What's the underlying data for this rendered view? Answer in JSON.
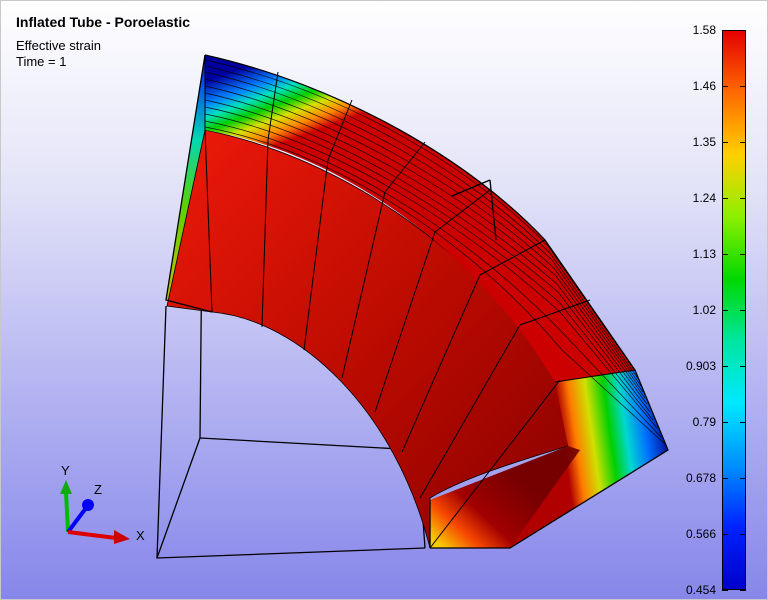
{
  "title": "Inflated Tube - Poroelastic",
  "subtitle": "Effective strain",
  "time": "Time = 1",
  "axes": {
    "x": "X",
    "y": "Y",
    "z": "Z"
  },
  "colorbar": {
    "ticks": [
      "1.58",
      "1.46",
      "1.35",
      "1.24",
      "1.13",
      "1.02",
      "0.903",
      "0.79",
      "0.678",
      "0.566",
      "0.454"
    ],
    "colors": [
      "#e40000",
      "#ff6a00",
      "#ffd000",
      "#8cf000",
      "#00d800",
      "#00e6a0",
      "#00e8ff",
      "#0090ff",
      "#0022ff",
      "#0000cc"
    ]
  }
}
